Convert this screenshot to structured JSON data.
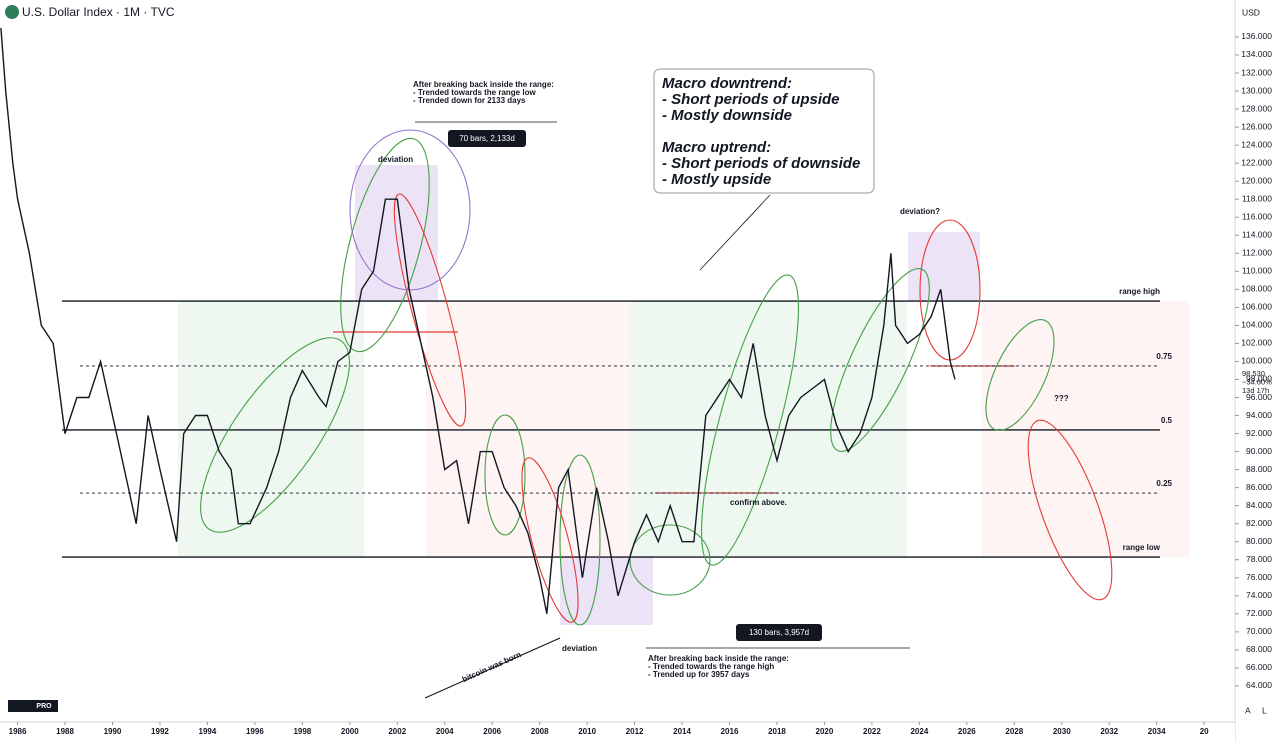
{
  "chart_data": {
    "type": "line",
    "title": "U.S. Dollar Index · 1M · TVC",
    "currency": "USD",
    "xlim": [
      1985.26,
      2037.3
    ],
    "ylim": [
      60,
      140.1
    ],
    "xticks": [
      1986,
      1988,
      1990,
      1992,
      1994,
      1996,
      1998,
      2000,
      2002,
      2004,
      2006,
      2008,
      2010,
      2012,
      2014,
      2016,
      2018,
      2020,
      2022,
      2024,
      2026,
      2028,
      2030,
      2032,
      2034,
      {
        "value": 2036,
        "label": "20"
      }
    ],
    "yticks": [
      64,
      66,
      68,
      70,
      72,
      74,
      76,
      78,
      80,
      82,
      84,
      86,
      88,
      90,
      92,
      94,
      96,
      98,
      100,
      102,
      104,
      106,
      108,
      110,
      112,
      114,
      116,
      118,
      120,
      122,
      124,
      126,
      128,
      130,
      132,
      134,
      136
    ],
    "yticks_format": "000",
    "series": [
      {
        "name": "DXY",
        "color": "#131722",
        "x": [
          1985.3,
          1985.5,
          1985.8,
          1986.0,
          1986.5,
          1987.0,
          1987.5,
          1988.0,
          1988.5,
          1989.0,
          1989.5,
          1990.0,
          1990.5,
          1991.0,
          1991.5,
          1992.0,
          1992.7,
          1993.0,
          1993.5,
          1994.0,
          1994.5,
          1995.0,
          1995.3,
          1995.8,
          1996.5,
          1997.0,
          1997.5,
          1998.0,
          1998.7,
          1999.0,
          1999.5,
          2000.0,
          2000.5,
          2001.0,
          2001.5,
          2002.0,
          2002.5,
          2003.0,
          2003.5,
          2004.0,
          2004.5,
          2005.0,
          2005.5,
          2006.0,
          2006.5,
          2007.0,
          2007.5,
          2008.0,
          2008.3,
          2008.8,
          2009.2,
          2009.8,
          2010.4,
          2010.9,
          2011.3,
          2012.0,
          2012.5,
          2013.0,
          2013.5,
          2014.0,
          2014.5,
          2015.0,
          2015.5,
          2016.0,
          2016.5,
          2017.0,
          2017.5,
          2018.0,
          2018.5,
          2019.0,
          2019.5,
          2020.0,
          2020.5,
          2021.0,
          2021.5,
          2022.0,
          2022.5,
          2022.8,
          2023.0,
          2023.5,
          2024.0,
          2024.5,
          2024.9,
          2025.3,
          2025.5
        ],
        "values": [
          137,
          130,
          122,
          118,
          112,
          104,
          102,
          92,
          96,
          96,
          100,
          94,
          88,
          82,
          94,
          88,
          80,
          92,
          94,
          94,
          90,
          88,
          82,
          82,
          86,
          90,
          96,
          99,
          96,
          95,
          100,
          101,
          108,
          110,
          118,
          118,
          108,
          102,
          96,
          88,
          89,
          82,
          90,
          90,
          86,
          84,
          81,
          76,
          72,
          86,
          88,
          76,
          86,
          80,
          74,
          80,
          83,
          80,
          84,
          80,
          80,
          94,
          96,
          98,
          96,
          102,
          94,
          89,
          94,
          96,
          97,
          98,
          93,
          90,
          92,
          96,
          104,
          112,
          104,
          102,
          103,
          105,
          108,
          100,
          98
        ]
      }
    ],
    "levels": [
      {
        "label": "range high",
        "value": 106.7
      },
      {
        "label": "0.75",
        "value": 99.5
      },
      {
        "label": "0.5",
        "value": 92.4
      },
      {
        "label": "0.25",
        "value": 85.4
      },
      {
        "label": "range low",
        "value": 78.3
      }
    ],
    "last_price": {
      "value": "98.530",
      "change": "−34.60%",
      "countdown": "13d 17h"
    },
    "annotations": {
      "top_note": [
        "After breaking back inside the range:",
        "- Trended towards the range low",
        "- Trended down for 2133 days"
      ],
      "top_box": "70 bars, 2,133d",
      "bottom_box": "130 bars, 3,957d",
      "bottom_note": [
        "After breaking back inside the range:",
        "- Trended towards the range high",
        "- Trended up for 3957 days"
      ],
      "macro": [
        "Macro downtrend:",
        "- Short periods of upside",
        "- Mostly downside",
        "Macro uptrend:",
        "- Short periods of downside",
        "- Mostly upside"
      ],
      "deviation_1": "deviation",
      "deviation_2": "deviation",
      "deviation_3": "deviation?",
      "confirm": "confirm above.",
      "question": "???",
      "bitcoin": "bitcoin was born"
    },
    "footer": {
      "logo": "PRO",
      "a": "A",
      "l": "L"
    }
  }
}
